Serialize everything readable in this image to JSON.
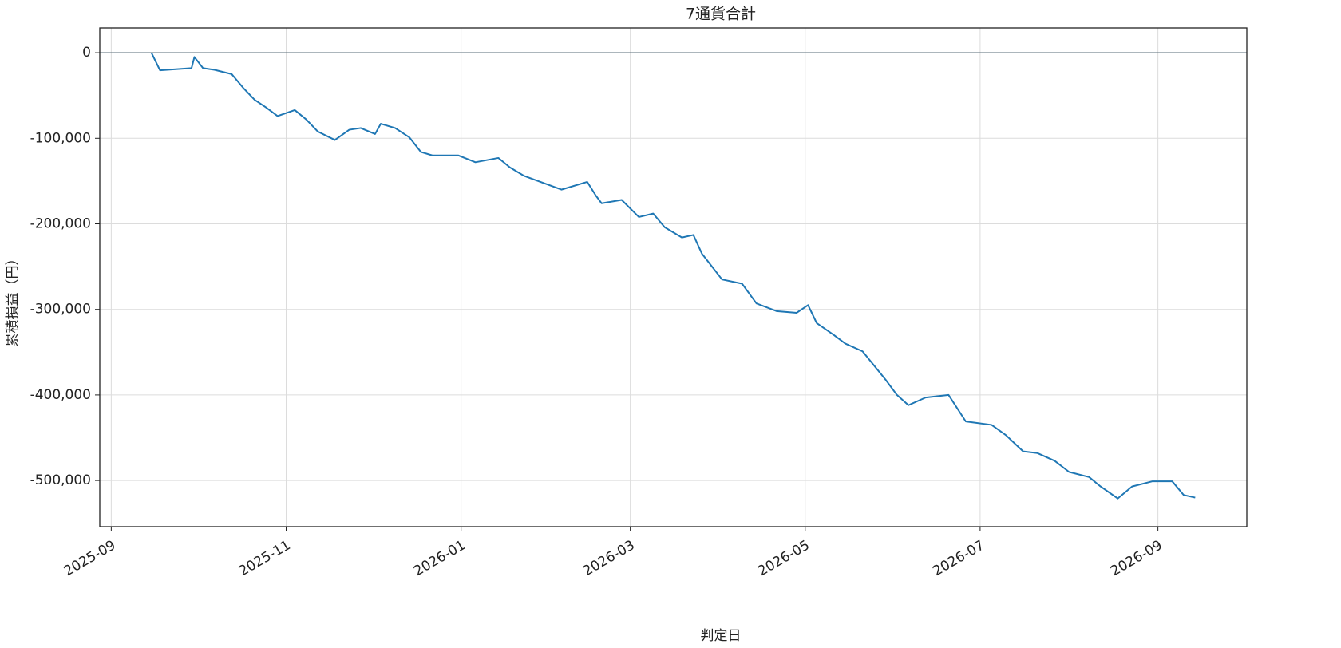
{
  "chart_data": {
    "type": "line",
    "title": "7通貨合計",
    "x_label": "判定日",
    "y_label": "累積損益（円）",
    "x": [
      "2025-09-15",
      "2025-09-18",
      "2025-09-29",
      "2025-09-30",
      "2025-10-03",
      "2025-10-07",
      "2025-10-13",
      "2025-10-17",
      "2025-10-21",
      "2025-10-25",
      "2025-10-29",
      "2025-11-04",
      "2025-11-08",
      "2025-11-12",
      "2025-11-18",
      "2025-11-23",
      "2025-11-27",
      "2025-12-02",
      "2025-12-04",
      "2025-12-09",
      "2025-12-14",
      "2025-12-18",
      "2025-12-22",
      "2025-12-31",
      "2026-01-06",
      "2026-01-14",
      "2026-01-18",
      "2026-01-23",
      "2026-02-01",
      "2026-02-05",
      "2026-02-14",
      "2026-02-17",
      "2026-02-19",
      "2026-02-26",
      "2026-03-04",
      "2026-03-09",
      "2026-03-13",
      "2026-03-19",
      "2026-03-23",
      "2026-03-26",
      "2026-04-02",
      "2026-04-09",
      "2026-04-14",
      "2026-04-21",
      "2026-04-28",
      "2026-05-02",
      "2026-05-05",
      "2026-05-11",
      "2026-05-15",
      "2026-05-21",
      "2026-05-29",
      "2026-06-02",
      "2026-06-06",
      "2026-06-12",
      "2026-06-20",
      "2026-06-26",
      "2026-07-05",
      "2026-07-10",
      "2026-07-16",
      "2026-07-21",
      "2026-07-27",
      "2026-08-01",
      "2026-08-08",
      "2026-08-12",
      "2026-08-18",
      "2026-08-23",
      "2026-08-30",
      "2026-09-06",
      "2026-09-10",
      "2026-09-14"
    ],
    "series": [
      {
        "name": "7通貨合計",
        "color": "#1f77b4",
        "values": [
          0,
          -20500,
          -18000,
          -5000,
          -18000,
          -20000,
          -25000,
          -41000,
          -55000,
          -64000,
          -74000,
          -67000,
          -78000,
          -92000,
          -102000,
          -90000,
          -88000,
          -95000,
          -83000,
          -88000,
          -99000,
          -116000,
          -120000,
          -120000,
          -128000,
          -123000,
          -134000,
          -144000,
          -155000,
          -160000,
          -151000,
          -167000,
          -176000,
          -172000,
          -192000,
          -188000,
          -204000,
          -216000,
          -213000,
          -235000,
          -265000,
          -270000,
          -293000,
          -302000,
          -304000,
          -295000,
          -316000,
          -330000,
          -340000,
          -349000,
          -382000,
          -400000,
          -412000,
          -403000,
          -400000,
          -431000,
          -435000,
          -447000,
          -466000,
          -468000,
          -477000,
          -490000,
          -496000,
          -507000,
          -521000,
          -507000,
          -501000,
          -501000,
          -517000,
          -520000
        ]
      }
    ],
    "xlim": [
      "2025-08-28",
      "2026-10-02"
    ],
    "xticks": [
      "2025-09",
      "2025-11",
      "2026-01",
      "2026-03",
      "2026-05",
      "2026-07",
      "2026-09"
    ],
    "ylim": [
      -554000,
      29000
    ],
    "yticks": [
      {
        "value": -500000,
        "label": "-500,000"
      },
      {
        "value": -400000,
        "label": "-400,000"
      },
      {
        "value": -300000,
        "label": "-300,000"
      },
      {
        "value": -200000,
        "label": "-200,000"
      },
      {
        "value": -100000,
        "label": "-100,000"
      },
      0
    ],
    "grid": true,
    "zero_line": true
  }
}
